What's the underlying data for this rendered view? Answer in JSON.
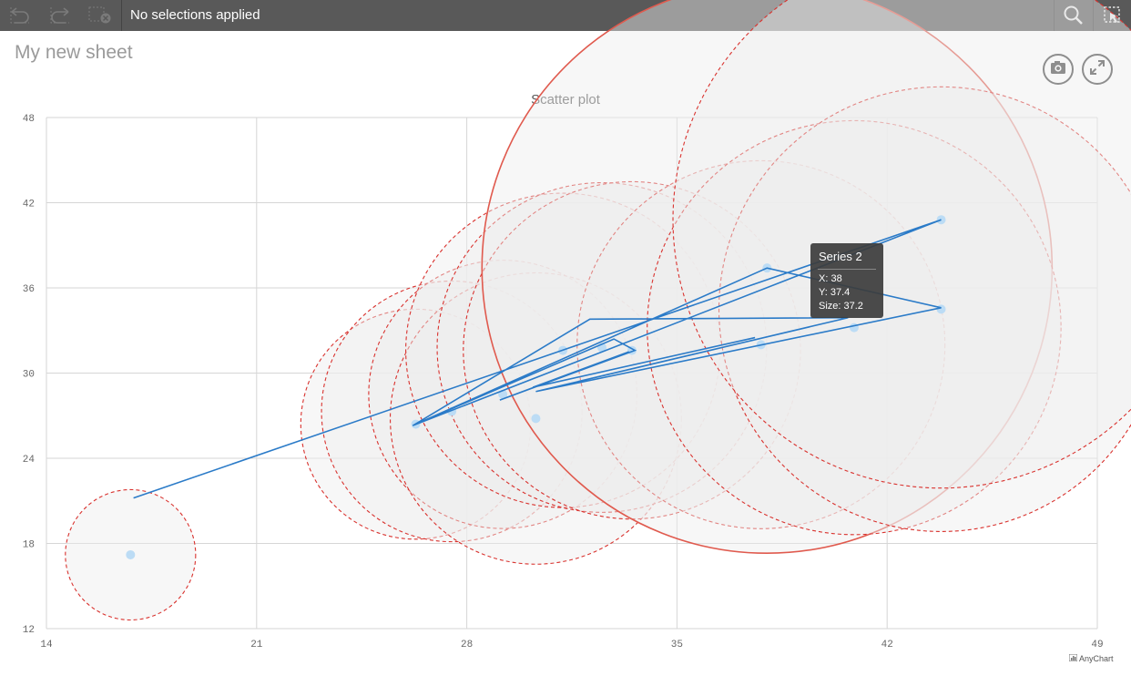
{
  "toolbar": {
    "selection_text": "No selections applied",
    "icons": [
      "back-step-icon",
      "forward-step-icon",
      "clear-selections-icon",
      "search-icon",
      "selection-tool-icon"
    ],
    "background": "#595959"
  },
  "sheet": {
    "title": "My new sheet"
  },
  "actions": {
    "icons": [
      "camera-icon",
      "expand-icon"
    ]
  },
  "chart_data": {
    "type": "scatter",
    "title": "Scatter plot",
    "xlabel": "",
    "ylabel": "",
    "xlim": [
      14,
      49
    ],
    "ylim": [
      12,
      48
    ],
    "x_ticks": [
      "14",
      "21",
      "28",
      "35",
      "42",
      "49"
    ],
    "y_ticks": [
      "12",
      "18",
      "24",
      "30",
      "36",
      "42",
      "48"
    ],
    "grid": true,
    "legend": "none",
    "credit": "AnyChart",
    "colors": {
      "line": "#2b7bc8",
      "bubble_stroke": "#d9322e",
      "bubble_fill": "#eeeeee",
      "marker": "#bcdcf5",
      "hover_stroke": "#e05a4e"
    },
    "series": [
      {
        "type": "bubble",
        "points": [
          {
            "x": 16.8,
            "y": 17.2,
            "size": 8.5
          },
          {
            "x": 26.3,
            "y": 26.4,
            "size": 15
          },
          {
            "x": 27.5,
            "y": 27.3,
            "size": 17
          },
          {
            "x": 29.2,
            "y": 28.5,
            "size": 17.5
          },
          {
            "x": 30.3,
            "y": 26.8,
            "size": 19
          },
          {
            "x": 31.2,
            "y": 31.6,
            "size": 20.5
          },
          {
            "x": 32.5,
            "y": 31.8,
            "size": 21.5
          },
          {
            "x": 33.5,
            "y": 31.6,
            "size": 22
          },
          {
            "x": 37.8,
            "y": 32.0,
            "size": 24
          },
          {
            "x": 38.0,
            "y": 37.4,
            "size": 37.2
          },
          {
            "x": 40.9,
            "y": 33.2,
            "size": 27
          },
          {
            "x": 43.8,
            "y": 34.5,
            "size": 29
          },
          {
            "x": 43.8,
            "y": 40.8,
            "size": 35
          }
        ]
      },
      {
        "type": "line",
        "points": [
          [
            16.9,
            21.2
          ],
          [
            43.8,
            40.8
          ],
          [
            26.2,
            26.3
          ],
          [
            32.1,
            33.8
          ],
          [
            40.7,
            33.9
          ],
          [
            30.3,
            28.7
          ],
          [
            43.8,
            34.6
          ],
          [
            38.0,
            37.4
          ],
          [
            26.3,
            26.4
          ],
          [
            32.9,
            32.4
          ],
          [
            33.6,
            31.6
          ],
          [
            29.1,
            28.1
          ],
          [
            33.4,
            31.5
          ],
          [
            30.2,
            29.0
          ],
          [
            37.6,
            32.5
          ]
        ]
      }
    ]
  },
  "tooltip": {
    "title": "Series 2",
    "x_text": "X: 38",
    "y_text": "Y: 37.4",
    "size_text": "Size: 37.2"
  }
}
